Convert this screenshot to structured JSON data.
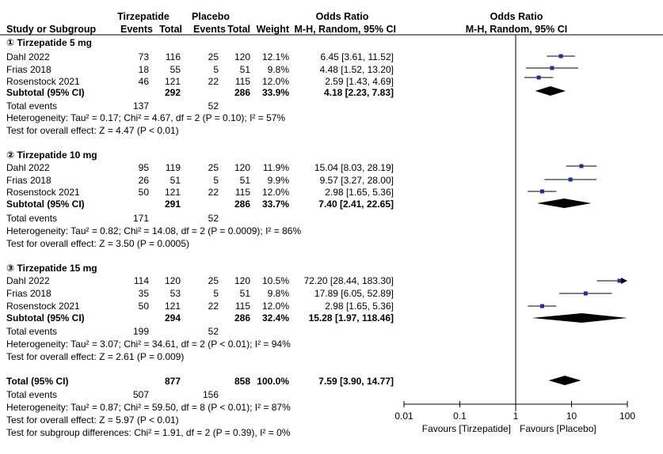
{
  "header": {
    "group_tirzepatide": "Tirzepatide",
    "group_placebo": "Placebo",
    "col_study": "Study or Subgroup",
    "col_events_t": "Events",
    "col_total_t": "Total",
    "col_events_p": "Events",
    "col_total_p": "Total",
    "col_weight": "Weight",
    "or_title": "Odds Ratio",
    "or_method": "M-H, Random, 95% CI",
    "plot_title": "Odds Ratio",
    "plot_method": "M-H, Random, 95% CI"
  },
  "subgroups": [
    {
      "title": "① Tirzepatide 5 mg",
      "studies": [
        {
          "name": "Dahl 2022",
          "ev_t": "73",
          "tot_t": "116",
          "ev_p": "25",
          "tot_p": "120",
          "weight": "12.1%",
          "ci_text": "6.45 [3.61, 11.52]",
          "or": 6.45,
          "lo": 3.61,
          "hi": 11.52
        },
        {
          "name": "Frias 2018",
          "ev_t": "18",
          "tot_t": "55",
          "ev_p": "5",
          "tot_p": "51",
          "weight": "9.8%",
          "ci_text": "4.48 [1.52, 13.20]",
          "or": 4.48,
          "lo": 1.52,
          "hi": 13.2
        },
        {
          "name": "Rosenstock 2021",
          "ev_t": "46",
          "tot_t": "121",
          "ev_p": "22",
          "tot_p": "115",
          "weight": "12.0%",
          "ci_text": "2.59 [1.43, 4.69]",
          "or": 2.59,
          "lo": 1.43,
          "hi": 4.69
        }
      ],
      "subtotal": {
        "label": "Subtotal (95% CI)",
        "tot_t": "292",
        "tot_p": "286",
        "weight": "33.9%",
        "ci_text": "4.18 [2.23, 7.83]",
        "or": 4.18,
        "lo": 2.23,
        "hi": 7.83
      },
      "total_events": {
        "label": "Total events",
        "ev_t": "137",
        "ev_p": "52"
      },
      "heterogeneity": "Heterogeneity: Tau² = 0.17; Chi² = 4.67, df = 2 (P = 0.10); I² = 57%",
      "overall": "Test for overall effect: Z = 4.47 (P < 0.01)"
    },
    {
      "title": "② Tirzepatide 10 mg",
      "studies": [
        {
          "name": "Dahl 2022",
          "ev_t": "95",
          "tot_t": "119",
          "ev_p": "25",
          "tot_p": "120",
          "weight": "11.9%",
          "ci_text": "15.04 [8.03, 28.19]",
          "or": 15.04,
          "lo": 8.03,
          "hi": 28.19
        },
        {
          "name": "Frias 2018",
          "ev_t": "26",
          "tot_t": "51",
          "ev_p": "5",
          "tot_p": "51",
          "weight": "9.9%",
          "ci_text": "9.57 [3.27, 28.00]",
          "or": 9.57,
          "lo": 3.27,
          "hi": 28.0
        },
        {
          "name": "Rosenstock 2021",
          "ev_t": "50",
          "tot_t": "121",
          "ev_p": "22",
          "tot_p": "115",
          "weight": "12.0%",
          "ci_text": "2.98 [1.65, 5.36]",
          "or": 2.98,
          "lo": 1.65,
          "hi": 5.36
        }
      ],
      "subtotal": {
        "label": "Subtotal (95% CI)",
        "tot_t": "291",
        "tot_p": "286",
        "weight": "33.7%",
        "ci_text": "7.40 [2.41, 22.65]",
        "or": 7.4,
        "lo": 2.41,
        "hi": 22.65
      },
      "total_events": {
        "label": "Total events",
        "ev_t": "171",
        "ev_p": "52"
      },
      "heterogeneity": "Heterogeneity: Tau² = 0.82; Chi² = 14.08, df = 2 (P = 0.0009); I² = 86%",
      "overall": "Test for overall effect: Z = 3.50 (P = 0.0005)"
    },
    {
      "title": "③ Tirzepatide 15 mg",
      "studies": [
        {
          "name": "Dahl 2022",
          "ev_t": "114",
          "tot_t": "120",
          "ev_p": "25",
          "tot_p": "120",
          "weight": "10.5%",
          "ci_text": "72.20 [28.44, 183.30]",
          "or": 72.2,
          "lo": 28.44,
          "hi": 183.3
        },
        {
          "name": "Frias 2018",
          "ev_t": "35",
          "tot_t": "53",
          "ev_p": "5",
          "tot_p": "51",
          "weight": "9.8%",
          "ci_text": "17.89 [6.05, 52.89]",
          "or": 17.89,
          "lo": 6.05,
          "hi": 52.89
        },
        {
          "name": "Rosenstock 2021",
          "ev_t": "50",
          "tot_t": "121",
          "ev_p": "22",
          "tot_p": "115",
          "weight": "12.0%",
          "ci_text": "2.98 [1.65, 5.36]",
          "or": 2.98,
          "lo": 1.65,
          "hi": 5.36
        }
      ],
      "subtotal": {
        "label": "Subtotal (95% CI)",
        "tot_t": "294",
        "tot_p": "286",
        "weight": "32.4%",
        "ci_text": "15.28 [1.97, 118.46]",
        "or": 15.28,
        "lo": 1.97,
        "hi": 118.46
      },
      "total_events": {
        "label": "Total events",
        "ev_t": "199",
        "ev_p": "52"
      },
      "heterogeneity": "Heterogeneity: Tau² = 3.07; Chi² = 34.61, df = 2 (P < 0.01); I² = 94%",
      "overall": "Test for overall effect: Z = 2.61 (P = 0.009)"
    }
  ],
  "total": {
    "label": "Total (95% CI)",
    "tot_t": "877",
    "tot_p": "858",
    "weight": "100.0%",
    "ci_text": "7.59 [3.90, 14.77]",
    "or": 7.59,
    "lo": 3.9,
    "hi": 14.77,
    "events_label": "Total events",
    "ev_t": "507",
    "ev_p": "156",
    "heterogeneity": "Heterogeneity: Tau² = 0.87; Chi² = 59.50, df = 8 (P < 0.01); I² = 87%",
    "overall": "Test for overall effect: Z = 5.97 (P < 0.01)",
    "subgroup_diff": "Test for subgroup differences: Chi² = 1.91, df = 2 (P = 0.39), I² = 0%"
  },
  "chart_data": {
    "type": "scatter",
    "x_scale": "log",
    "xlim": [
      0.01,
      100
    ],
    "reference_line": 1,
    "x_ticks": [
      "0.01",
      "0.1",
      "1",
      "10",
      "100"
    ],
    "favours_left": "Favours [Tirzepatide]",
    "favours_right": "Favours [Placebo]",
    "colors": {
      "study_marker": "#1f2f8f",
      "diamond": "#000000",
      "line": "#000000"
    }
  }
}
